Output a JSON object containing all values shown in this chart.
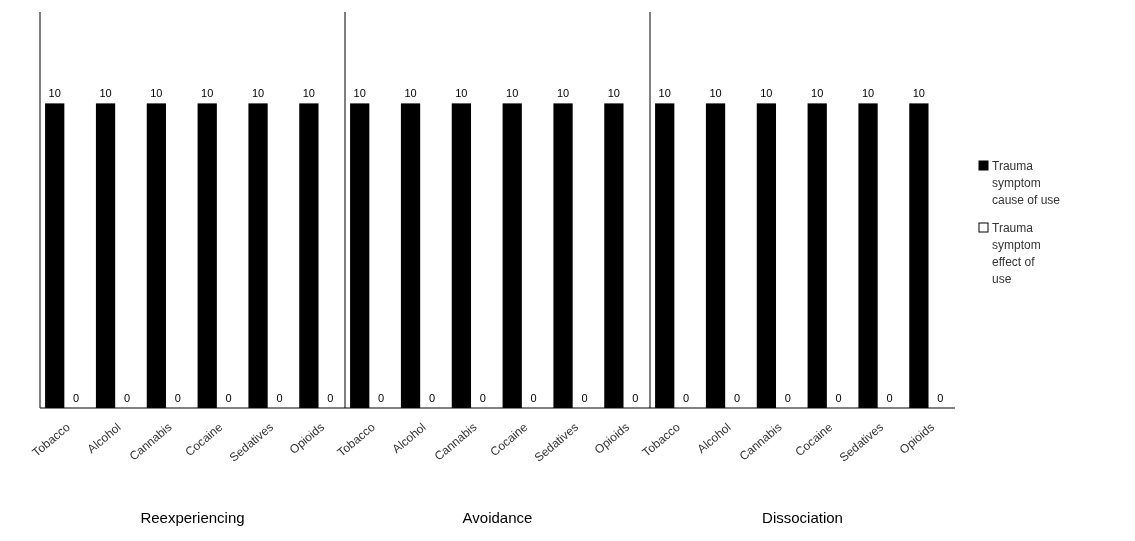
{
  "chart_data": {
    "type": "bar",
    "categories": [
      "Tobacco",
      "Alcohol",
      "Cannabis",
      "Cocaine",
      "Sedatives",
      "Opioids",
      "Tobacco",
      "Alcohol",
      "Cannabis",
      "Cocaine",
      "Sedatives",
      "Opioids",
      "Tobacco",
      "Alcohol",
      "Cannabis",
      "Cocaine",
      "Sedatives",
      "Opioids"
    ],
    "series": [
      {
        "name": "Trauma symptom cause of use",
        "color": "#000000",
        "values": [
          10,
          10,
          10,
          10,
          10,
          10,
          10,
          10,
          10,
          10,
          10,
          10,
          10,
          10,
          10,
          10,
          10,
          10
        ]
      },
      {
        "name": "Trauma symptom effect of use",
        "color": "#ffffff",
        "values": [
          0,
          0,
          0,
          0,
          0,
          0,
          0,
          0,
          0,
          0,
          0,
          0,
          0,
          0,
          0,
          0,
          0,
          0
        ]
      }
    ],
    "ylim": [
      0,
      13
    ],
    "tick_labels": "x",
    "data_labels": true,
    "legend": "right",
    "annotations": [
      "Reexperiencing",
      "Avoidance",
      "Dissociation"
    ]
  }
}
